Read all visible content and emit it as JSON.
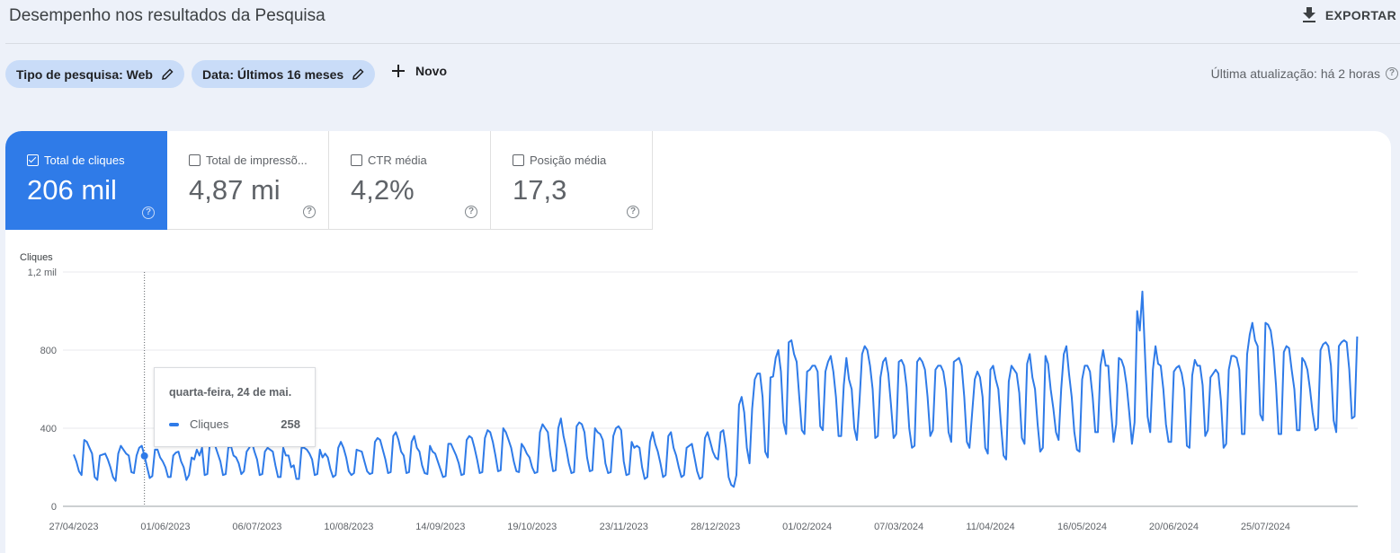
{
  "header": {
    "title": "Desempenho nos resultados da Pesquisa",
    "export_label": "EXPORTAR"
  },
  "filters": {
    "chips": [
      {
        "label": "Tipo de pesquisa: Web"
      },
      {
        "label": "Data: Últimos 16 meses"
      }
    ],
    "new_label": "Novo",
    "last_update": "Última atualização: há 2 horas"
  },
  "metrics": [
    {
      "label": "Total de cliques",
      "value": "206 mil",
      "checked": true
    },
    {
      "label": "Total de impressõ...",
      "value": "4,87 mi",
      "checked": false
    },
    {
      "label": "CTR média",
      "value": "4,2%",
      "checked": false
    },
    {
      "label": "Posição média",
      "value": "17,3",
      "checked": false
    }
  ],
  "tooltip": {
    "date": "quarta-feira, 24 de mai.",
    "series": "Cliques",
    "value": "258"
  },
  "chart_data": {
    "type": "line",
    "ylabel": "Cliques",
    "ylim": [
      0,
      1200
    ],
    "y_ticks": [
      {
        "value": 0,
        "label": "0"
      },
      {
        "value": 400,
        "label": "400"
      },
      {
        "value": 800,
        "label": "800"
      },
      {
        "value": 1200,
        "label": "1,2 mil"
      }
    ],
    "x_ticks": [
      "27/04/2023",
      "01/06/2023",
      "06/07/2023",
      "10/08/2023",
      "14/09/2023",
      "19/10/2023",
      "23/11/2023",
      "28/12/2023",
      "01/02/2024",
      "07/03/2024",
      "11/04/2024",
      "16/05/2024",
      "20/06/2024",
      "25/07/2024"
    ],
    "start_date": "27/04/2023",
    "interval": "daily",
    "color": "#2f7be8",
    "highlight": {
      "date": "24/05/2023",
      "value": 258
    },
    "series": [
      {
        "name": "Cliques",
        "values": [
          265,
          230,
          180,
          160,
          340,
          330,
          300,
          270,
          150,
          135,
          260,
          265,
          270,
          240,
          200,
          150,
          130,
          270,
          310,
          290,
          270,
          260,
          175,
          170,
          260,
          300,
          310,
          258,
          200,
          145,
          155,
          290,
          290,
          250,
          230,
          200,
          150,
          150,
          260,
          275,
          280,
          230,
          200,
          135,
          160,
          250,
          240,
          290,
          260,
          300,
          160,
          165,
          330,
          340,
          310,
          270,
          230,
          160,
          165,
          300,
          310,
          260,
          250,
          220,
          165,
          180,
          280,
          300,
          330,
          280,
          240,
          160,
          165,
          280,
          300,
          290,
          280,
          210,
          150,
          150,
          300,
          260,
          260,
          200,
          210,
          140,
          140,
          300,
          300,
          290,
          270,
          240,
          160,
          165,
          290,
          250,
          270,
          250,
          190,
          150,
          160,
          300,
          330,
          300,
          250,
          180,
          160,
          170,
          290,
          285,
          280,
          230,
          180,
          165,
          170,
          330,
          350,
          340,
          290,
          240,
          170,
          175,
          360,
          380,
          340,
          280,
          260,
          170,
          175,
          330,
          360,
          300,
          280,
          210,
          170,
          165,
          310,
          280,
          270,
          230,
          190,
          150,
          155,
          320,
          320,
          290,
          260,
          220,
          160,
          165,
          340,
          360,
          350,
          300,
          240,
          170,
          175,
          350,
          390,
          380,
          330,
          260,
          180,
          185,
          400,
          380,
          340,
          300,
          230,
          180,
          175,
          320,
          300,
          270,
          250,
          200,
          170,
          175,
          380,
          420,
          400,
          380,
          260,
          180,
          185,
          400,
          450,
          360,
          300,
          220,
          170,
          175,
          410,
          430,
          420,
          380,
          250,
          180,
          185,
          400,
          380,
          370,
          340,
          220,
          170,
          175,
          360,
          400,
          410,
          390,
          230,
          160,
          165,
          330,
          300,
          310,
          300,
          200,
          140,
          150,
          330,
          380,
          320,
          280,
          220,
          150,
          160,
          360,
          380,
          300,
          260,
          200,
          150,
          160,
          300,
          310,
          320,
          250,
          180,
          140,
          150,
          350,
          380,
          330,
          280,
          250,
          240,
          380,
          390,
          300,
          150,
          110,
          100,
          160,
          520,
          560,
          480,
          300,
          220,
          500,
          650,
          680,
          680,
          560,
          280,
          250,
          660,
          665,
          760,
          800,
          690,
          430,
          370,
          840,
          850,
          780,
          740,
          560,
          390,
          370,
          690,
          700,
          720,
          720,
          690,
          410,
          390,
          690,
          740,
          770,
          690,
          560,
          360,
          360,
          620,
          760,
          650,
          600,
          400,
          340,
          540,
          780,
          820,
          800,
          720,
          600,
          350,
          360,
          660,
          740,
          760,
          680,
          520,
          350,
          370,
          740,
          750,
          720,
          610,
          400,
          300,
          310,
          740,
          760,
          740,
          700,
          560,
          360,
          390,
          700,
          720,
          720,
          690,
          600,
          380,
          330,
          740,
          750,
          760,
          720,
          560,
          330,
          300,
          480,
          650,
          690,
          660,
          560,
          300,
          270,
          700,
          720,
          650,
          600,
          420,
          260,
          240,
          640,
          720,
          700,
          680,
          580,
          350,
          320,
          730,
          780,
          660,
          600,
          420,
          280,
          300,
          770,
          730,
          600,
          500,
          380,
          340,
          600,
          780,
          820,
          680,
          560,
          380,
          290,
          280,
          650,
          720,
          720,
          690,
          560,
          380,
          380,
          720,
          800,
          720,
          720,
          500,
          330,
          420,
          760,
          750,
          710,
          620,
          480,
          320,
          430,
          1000,
          900,
          1100,
          780,
          460,
          380,
          700,
          820,
          730,
          720,
          600,
          420,
          330,
          330,
          690,
          710,
          720,
          680,
          600,
          310,
          300,
          670,
          750,
          720,
          720,
          620,
          360,
          390,
          660,
          680,
          700,
          680,
          540,
          300,
          320,
          700,
          770,
          770,
          760,
          700,
          370,
          370,
          780,
          880,
          940,
          850,
          820,
          470,
          440,
          940,
          930,
          900,
          800,
          620,
          370,
          370,
          790,
          820,
          810,
          700,
          600,
          390,
          390,
          760,
          740,
          700,
          600,
          480,
          390,
          400,
          800,
          830,
          840,
          820,
          720,
          440,
          380,
          820,
          840,
          850,
          840,
          700,
          450,
          460,
          870
        ]
      }
    ]
  }
}
